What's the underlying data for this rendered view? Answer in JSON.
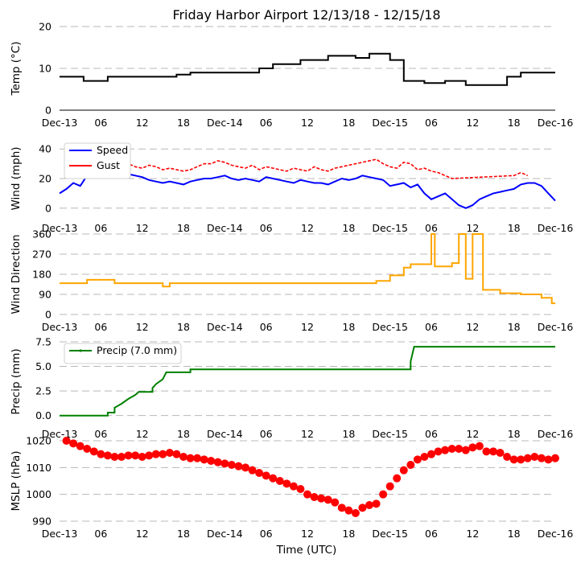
{
  "chart_data": {
    "title": "Friday Harbor Airport 12/13/18 - 12/15/18",
    "xlabel": "Time (UTC)",
    "x_tick_labels": [
      "Dec-13",
      "06",
      "12",
      "18",
      "Dec-14",
      "06",
      "12",
      "18",
      "Dec-15",
      "06",
      "12",
      "18",
      "Dec-16"
    ],
    "xlim_hours": [
      0,
      72
    ],
    "panels": [
      {
        "id": "temp",
        "type": "line",
        "ylabel": "Temp ($^\\circ$C)",
        "ylabel_text": "Temp (°C)",
        "ylim": [
          0,
          20
        ],
        "yticks": [
          "0",
          "10",
          "20"
        ],
        "ytick_values": [
          0,
          10,
          20
        ],
        "color": "#000000",
        "series": [
          {
            "name": "Temperature",
            "unit": "°C",
            "step_points": [
              [
                0,
                8
              ],
              [
                3.5,
                8
              ],
              [
                3.5,
                7
              ],
              [
                7,
                7
              ],
              [
                7,
                8
              ],
              [
                17,
                8
              ],
              [
                17,
                8.5
              ],
              [
                19,
                8.5
              ],
              [
                19,
                9
              ],
              [
                29,
                9
              ],
              [
                29,
                10
              ],
              [
                31,
                10
              ],
              [
                31,
                11
              ],
              [
                35,
                11
              ],
              [
                35,
                12
              ],
              [
                39,
                12
              ],
              [
                39,
                13
              ],
              [
                43,
                13
              ],
              [
                43,
                12.5
              ],
              [
                45,
                12.5
              ],
              [
                45,
                13.5
              ],
              [
                48,
                13.5
              ],
              [
                48,
                12
              ],
              [
                50,
                12
              ],
              [
                50,
                7
              ],
              [
                53,
                7
              ],
              [
                53,
                6.5
              ],
              [
                56,
                6.5
              ],
              [
                56,
                7
              ],
              [
                59,
                7
              ],
              [
                59,
                6
              ],
              [
                65,
                6
              ],
              [
                65,
                8
              ],
              [
                67,
                8
              ],
              [
                67,
                9
              ],
              [
                72,
                9
              ]
            ]
          }
        ]
      },
      {
        "id": "wind",
        "type": "line",
        "ylabel": "Wind (mph)",
        "ylim": [
          -5,
          45
        ],
        "yticks": [
          "0",
          "20",
          "40"
        ],
        "ytick_values": [
          0,
          20,
          40
        ],
        "legend": [
          "Speed",
          "Gust"
        ],
        "legend_loc": "upper-left",
        "series": [
          {
            "name": "Speed",
            "color": "#0000ff",
            "x": [
              0,
              1,
              2,
              3,
              4,
              5,
              6,
              7,
              8,
              9,
              10,
              11,
              12,
              13,
              14,
              15,
              16,
              17,
              18,
              19,
              20,
              21,
              22,
              23,
              24,
              25,
              26,
              27,
              28,
              29,
              30,
              31,
              32,
              33,
              34,
              35,
              36,
              37,
              38,
              39,
              40,
              41,
              42,
              43,
              44,
              45,
              46,
              47,
              48,
              49,
              50,
              51,
              52,
              53,
              54,
              55,
              56,
              57,
              58,
              59,
              60,
              61,
              62,
              63,
              64,
              65,
              66,
              67,
              68,
              69,
              70,
              71,
              72
            ],
            "y": [
              10,
              13,
              17,
              15,
              22,
              23,
              24,
              25,
              25,
              24,
              23,
              22,
              21,
              19,
              18,
              17,
              18,
              17,
              16,
              18,
              19,
              20,
              20,
              21,
              22,
              20,
              19,
              20,
              19,
              18,
              21,
              20,
              19,
              18,
              17,
              19,
              18,
              17,
              17,
              16,
              18,
              20,
              19,
              20,
              22,
              21,
              20,
              19,
              15,
              16,
              17,
              14,
              16,
              10,
              6,
              8,
              10,
              6,
              2,
              0,
              2,
              6,
              8,
              10,
              11,
              12,
              13,
              16,
              17,
              17,
              15,
              10,
              5
            ]
          },
          {
            "name": "Gust",
            "color": "#ff0000",
            "x": [
              3,
              4,
              5,
              6,
              7,
              8,
              9,
              10,
              11,
              12,
              13,
              14,
              15,
              16,
              17,
              18,
              19,
              20,
              21,
              22,
              23,
              24,
              25,
              26,
              27,
              28,
              29,
              30,
              31,
              32,
              33,
              34,
              35,
              36,
              37,
              38,
              39,
              40,
              41,
              42,
              43,
              44,
              45,
              46,
              47,
              48,
              49,
              50,
              51,
              52,
              53,
              54,
              55,
              56,
              57,
              66,
              67,
              68
            ],
            "y": [
              23,
              27,
              31,
              33,
              34,
              36,
              33,
              30,
              28,
              27,
              29,
              28,
              26,
              27,
              26,
              25,
              26,
              28,
              30,
              30,
              32,
              31,
              29,
              28,
              27,
              29,
              26,
              28,
              27,
              26,
              25,
              27,
              26,
              25,
              28,
              26,
              25,
              27,
              28,
              29,
              30,
              31,
              32,
              33,
              30,
              28,
              27,
              31,
              30,
              26,
              27,
              25,
              24,
              22,
              20,
              22,
              24,
              22
            ]
          }
        ]
      },
      {
        "id": "wdir",
        "type": "line",
        "ylabel": "Wind Direction",
        "ylim": [
          0,
          360
        ],
        "yticks": [
          "0",
          "90",
          "180",
          "270",
          "360"
        ],
        "ytick_values": [
          0,
          90,
          180,
          270,
          360
        ],
        "color": "#ffa500",
        "series": [
          {
            "name": "Wind Direction",
            "unit": "deg",
            "step_points": [
              [
                0,
                140
              ],
              [
                4,
                140
              ],
              [
                4,
                155
              ],
              [
                8,
                155
              ],
              [
                8,
                140
              ],
              [
                15,
                140
              ],
              [
                15,
                125
              ],
              [
                16,
                125
              ],
              [
                16,
                140
              ],
              [
                46,
                140
              ],
              [
                46,
                150
              ],
              [
                48,
                150
              ],
              [
                48,
                175
              ],
              [
                50,
                175
              ],
              [
                50,
                210
              ],
              [
                51,
                210
              ],
              [
                51,
                225
              ],
              [
                54,
                225
              ],
              [
                54,
                360
              ],
              [
                54.5,
                360
              ],
              [
                54.5,
                215
              ],
              [
                57,
                215
              ],
              [
                57,
                230
              ],
              [
                58,
                230
              ],
              [
                58,
                360
              ],
              [
                59,
                360
              ],
              [
                59,
                160
              ],
              [
                60,
                160
              ],
              [
                60,
                360
              ],
              [
                61.5,
                360
              ],
              [
                61.5,
                110
              ],
              [
                64,
                110
              ],
              [
                64,
                95
              ],
              [
                67,
                95
              ],
              [
                67,
                90
              ],
              [
                70,
                90
              ],
              [
                70,
                75
              ],
              [
                71.5,
                75
              ],
              [
                71.5,
                50
              ],
              [
                72,
                50
              ]
            ]
          }
        ]
      },
      {
        "id": "precip",
        "type": "line",
        "ylabel": "Precip (mm)",
        "ylim": [
          -0.6,
          7.5
        ],
        "yticks": [
          "0.0",
          "2.5",
          "5.0",
          "7.5"
        ],
        "ytick_values": [
          0,
          2.5,
          5,
          7.5
        ],
        "color": "#008000",
        "legend": [
          "Precip (7.0 mm)"
        ],
        "legend_loc": "upper-left",
        "series": [
          {
            "name": "Precip (7.0 mm)",
            "unit": "mm",
            "step_points": [
              [
                0,
                0
              ],
              [
                7,
                0
              ],
              [
                7,
                0.3
              ],
              [
                8,
                0.3
              ],
              [
                8,
                0.8
              ],
              [
                9,
                1.2
              ],
              [
                10,
                1.7
              ],
              [
                11,
                2.1
              ],
              [
                11.5,
                2.4
              ],
              [
                13.5,
                2.4
              ],
              [
                13.5,
                2.8
              ],
              [
                14,
                3.2
              ],
              [
                15,
                3.7
              ],
              [
                15.5,
                4.4
              ],
              [
                19,
                4.4
              ],
              [
                19,
                4.7
              ],
              [
                51,
                4.7
              ],
              [
                51,
                5.5
              ],
              [
                51.5,
                7.0
              ],
              [
                72,
                7.0
              ]
            ]
          }
        ]
      },
      {
        "id": "mslp",
        "type": "scatter",
        "ylabel": "MSLP (hPa)",
        "ylim": [
          990,
          1020
        ],
        "yticks": [
          "990",
          "1000",
          "1010",
          "1020"
        ],
        "ytick_values": [
          990,
          1000,
          1010,
          1020
        ],
        "color": "#ff0000",
        "series": [
          {
            "name": "MSLP",
            "unit": "hPa",
            "x": [
              1,
              2,
              3,
              4,
              5,
              6,
              7,
              8,
              9,
              10,
              11,
              12,
              13,
              14,
              15,
              16,
              17,
              18,
              19,
              20,
              21,
              22,
              23,
              24,
              25,
              26,
              27,
              28,
              29,
              30,
              31,
              32,
              33,
              34,
              35,
              36,
              37,
              38,
              39,
              40,
              41,
              42,
              43,
              44,
              45,
              46,
              47,
              48,
              49,
              50,
              51,
              52,
              53,
              54,
              55,
              56,
              57,
              58,
              59,
              60,
              61,
              62,
              63,
              64,
              65,
              66,
              67,
              68,
              69,
              70,
              71,
              72
            ],
            "y": [
              1020,
              1019,
              1018,
              1017,
              1016,
              1015,
              1014.5,
              1014,
              1014,
              1014.5,
              1014.5,
              1014,
              1014.5,
              1015,
              1015,
              1015.5,
              1015,
              1014,
              1013.5,
              1013.5,
              1013,
              1012.5,
              1012,
              1011.5,
              1011,
              1010.5,
              1010,
              1009,
              1008,
              1007,
              1006,
              1005,
              1004,
              1003,
              1002,
              1000,
              999,
              998.5,
              998,
              997,
              995,
              994,
              993,
              995,
              996,
              996.5,
              1000,
              1003,
              1006,
              1009,
              1011,
              1013,
              1014,
              1015,
              1016,
              1016.5,
              1017,
              1017,
              1016.5,
              1017.5,
              1018,
              1016,
              1016,
              1015.5,
              1014,
              1013,
              1013,
              1013.5,
              1014,
              1013.5,
              1013,
              1013.5
            ]
          }
        ]
      }
    ]
  }
}
